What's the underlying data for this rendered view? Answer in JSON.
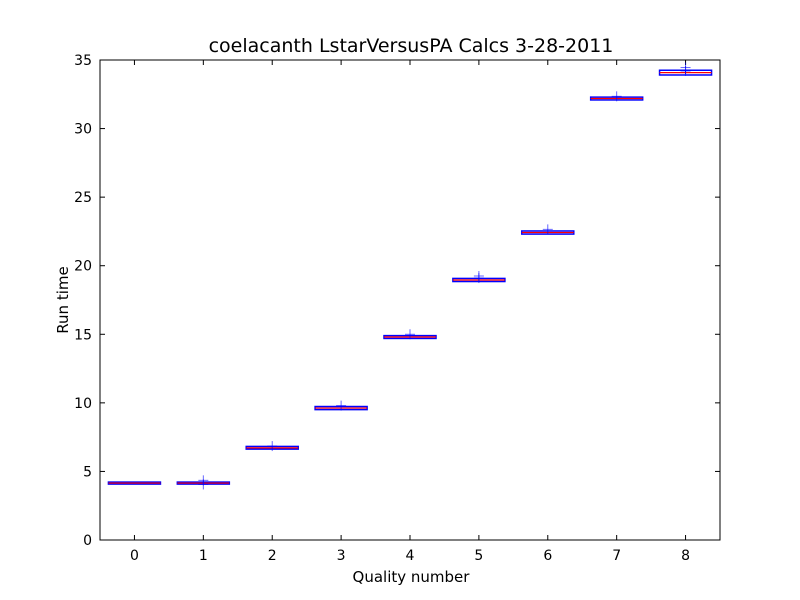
{
  "chart_data": {
    "type": "box",
    "title": "coelacanth LstarVersusPA Calcs 3-28-2011",
    "xlabel": "Quality number",
    "ylabel": "Run time",
    "ylim": [
      0,
      35
    ],
    "yticks": [
      "0",
      "5",
      "10",
      "15",
      "20",
      "25",
      "30",
      "35"
    ],
    "categories": [
      "0",
      "1",
      "2",
      "3",
      "4",
      "5",
      "6",
      "7",
      "8"
    ],
    "grid": false,
    "legend": "none",
    "boxes": [
      {
        "x": "0",
        "q1": 4.15,
        "median": 4.15,
        "q3": 4.15,
        "whisker_low": 4.15,
        "whisker_high": 4.15,
        "fliers": []
      },
      {
        "x": "1",
        "q1": 4.15,
        "median": 4.15,
        "q3": 4.15,
        "whisker_low": 4.15,
        "whisker_high": 4.15,
        "fliers": [
          4.35,
          4.05
        ]
      },
      {
        "x": "2",
        "q1": 6.7,
        "median": 6.72,
        "q3": 6.75,
        "whisker_low": 6.7,
        "whisker_high": 6.75,
        "fliers": [
          6.85
        ]
      },
      {
        "x": "3",
        "q1": 9.58,
        "median": 9.62,
        "q3": 9.66,
        "whisker_low": 9.58,
        "whisker_high": 9.66,
        "fliers": [
          9.8
        ]
      },
      {
        "x": "4",
        "q1": 14.77,
        "median": 14.8,
        "q3": 14.83,
        "whisker_low": 14.77,
        "whisker_high": 14.83,
        "fliers": [
          15.0
        ]
      },
      {
        "x": "5",
        "q1": 18.92,
        "median": 18.96,
        "q3": 19.0,
        "whisker_low": 18.92,
        "whisker_high": 19.0,
        "fliers": [
          19.25,
          19.1
        ]
      },
      {
        "x": "6",
        "q1": 22.38,
        "median": 22.42,
        "q3": 22.46,
        "whisker_low": 22.38,
        "whisker_high": 22.46,
        "fliers": [
          22.65
        ]
      },
      {
        "x": "7",
        "q1": 32.16,
        "median": 32.19,
        "q3": 32.22,
        "whisker_low": 32.16,
        "whisker_high": 32.22,
        "fliers": [
          32.35
        ]
      },
      {
        "x": "8",
        "q1": 33.98,
        "median": 34.08,
        "q3": 34.18,
        "whisker_low": 33.98,
        "whisker_high": 34.18,
        "fliers": [
          34.45,
          34.2
        ]
      }
    ],
    "colors": {
      "box": "#0000ff",
      "median": "#ff0000",
      "flier": "#0000ff",
      "axes": "#000000"
    }
  }
}
